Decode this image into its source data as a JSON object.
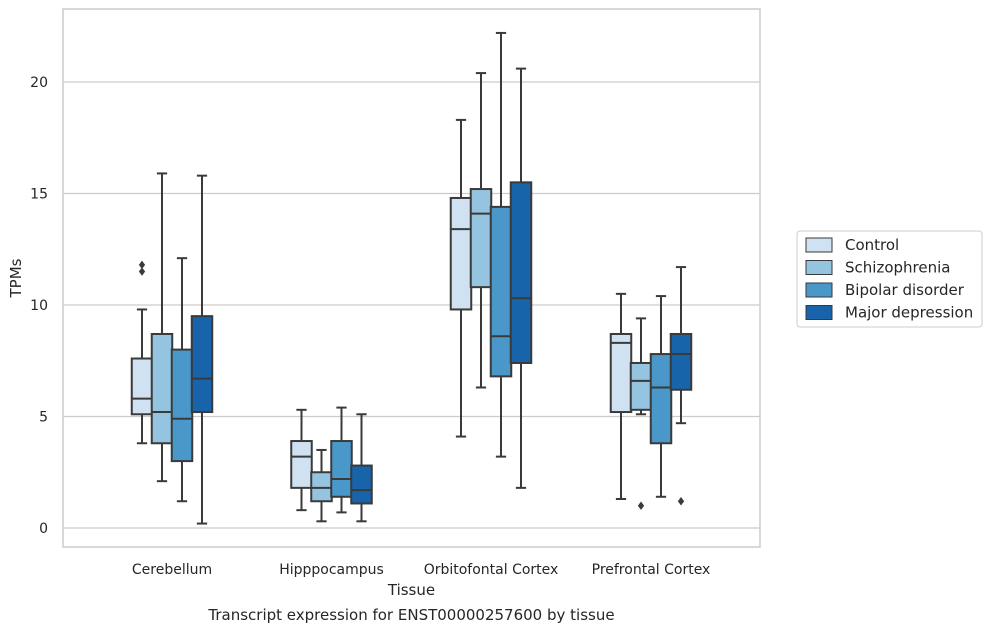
{
  "caption": "Transcript expression for ENST00000257600 by tissue",
  "chart_data": {
    "type": "box",
    "xlabel": "Tissue",
    "ylabel": "TPMs",
    "ylim": [
      -0.9,
      23.3
    ],
    "yticks": [
      0,
      5,
      10,
      15,
      20
    ],
    "grid": "horizontal",
    "legend_position": "right",
    "categories": [
      "Cerebellum",
      "Hipppocampus",
      "Orbitofontal Cortex",
      "Prefrontal Cortex"
    ],
    "series": [
      {
        "name": "Control",
        "color": "#d0e1f2",
        "boxes": [
          {
            "whislo": 3.8,
            "q1": 5.1,
            "med": 5.8,
            "q3": 7.6,
            "whishi": 9.8,
            "fliers": [
              11.5,
              11.8
            ]
          },
          {
            "whislo": 0.8,
            "q1": 1.8,
            "med": 3.2,
            "q3": 3.9,
            "whishi": 5.3,
            "fliers": []
          },
          {
            "whislo": 4.1,
            "q1": 9.8,
            "med": 13.4,
            "q3": 14.8,
            "whishi": 18.3,
            "fliers": []
          },
          {
            "whislo": 1.3,
            "q1": 5.2,
            "med": 8.3,
            "q3": 8.7,
            "whishi": 10.5,
            "fliers": []
          }
        ]
      },
      {
        "name": "Schizophrenia",
        "color": "#94c4df",
        "boxes": [
          {
            "whislo": 2.1,
            "q1": 3.8,
            "med": 5.2,
            "q3": 8.7,
            "whishi": 15.9,
            "fliers": []
          },
          {
            "whislo": 0.3,
            "q1": 1.2,
            "med": 1.8,
            "q3": 2.5,
            "whishi": 3.5,
            "fliers": []
          },
          {
            "whislo": 6.3,
            "q1": 10.8,
            "med": 14.1,
            "q3": 15.2,
            "whishi": 20.4,
            "fliers": []
          },
          {
            "whislo": 5.1,
            "q1": 5.3,
            "med": 6.6,
            "q3": 7.4,
            "whishi": 9.4,
            "fliers": [
              1.0
            ]
          }
        ]
      },
      {
        "name": "Bipolar disorder",
        "color": "#4a98c9",
        "boxes": [
          {
            "whislo": 1.2,
            "q1": 3.0,
            "med": 4.9,
            "q3": 8.0,
            "whishi": 12.1,
            "fliers": []
          },
          {
            "whislo": 0.7,
            "q1": 1.4,
            "med": 2.2,
            "q3": 3.9,
            "whishi": 5.4,
            "fliers": []
          },
          {
            "whislo": 3.2,
            "q1": 6.8,
            "med": 8.6,
            "q3": 14.4,
            "whishi": 22.2,
            "fliers": []
          },
          {
            "whislo": 1.4,
            "q1": 3.8,
            "med": 6.3,
            "q3": 7.8,
            "whishi": 10.4,
            "fliers": []
          }
        ]
      },
      {
        "name": "Major depression",
        "color": "#1764ab",
        "boxes": [
          {
            "whislo": 0.2,
            "q1": 5.2,
            "med": 6.7,
            "q3": 9.5,
            "whishi": 15.8,
            "fliers": []
          },
          {
            "whislo": 0.3,
            "q1": 1.1,
            "med": 1.7,
            "q3": 2.8,
            "whishi": 5.1,
            "fliers": []
          },
          {
            "whislo": 1.8,
            "q1": 7.4,
            "med": 10.3,
            "q3": 15.5,
            "whishi": 20.6,
            "fliers": []
          },
          {
            "whislo": 4.7,
            "q1": 6.2,
            "med": 7.8,
            "q3": 8.7,
            "whishi": 11.7,
            "fliers": [
              1.2
            ]
          }
        ]
      }
    ]
  },
  "colors": {
    "grid": "#cccccc",
    "frame": "#cccccc",
    "box_edge": "#3a3a3a",
    "text": "#262626"
  }
}
